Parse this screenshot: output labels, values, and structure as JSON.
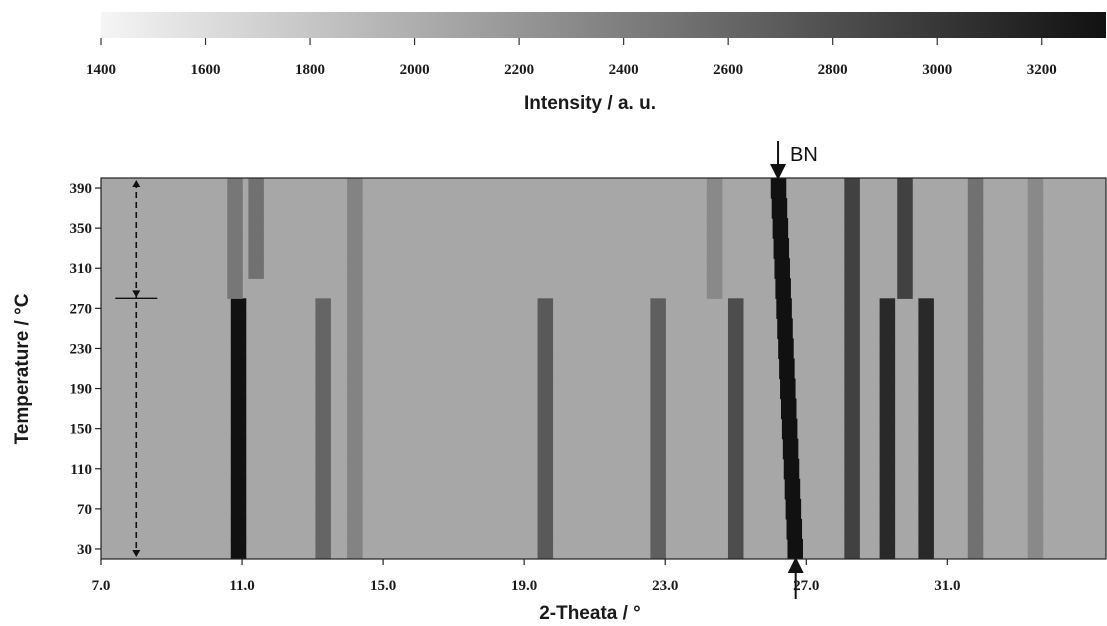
{
  "chart_data": {
    "type": "heatmap",
    "colorbar": {
      "min": 1400,
      "max": 3300,
      "ticks": [
        1400,
        1600,
        1800,
        2000,
        2200,
        2400,
        2600,
        2800,
        3000,
        3200
      ],
      "tick_labels": [
        "1400",
        "1600",
        "1800",
        "2000",
        "2200",
        "2400",
        "2600",
        "2800",
        "3000",
        "3200"
      ],
      "label": "Intensity / a. u.",
      "low_color": "#f5f5f5",
      "high_color": "#111111"
    },
    "x_axis": {
      "label": "2-Theata / °",
      "range": [
        7.0,
        35.5
      ],
      "ticks": [
        7.0,
        11.0,
        15.0,
        19.0,
        23.0,
        27.0,
        31.0
      ],
      "tick_labels": [
        "7.0",
        "11.0",
        "15.0",
        "19.0",
        "23.0",
        "27.0",
        "31.0"
      ]
    },
    "y_axis": {
      "label": "Temperature / °C",
      "range": [
        20,
        400
      ],
      "ticks": [
        30,
        70,
        110,
        150,
        190,
        230,
        270,
        310,
        350,
        390
      ],
      "tick_labels": [
        "30",
        "70",
        "110",
        "150",
        "190",
        "230",
        "270",
        "310",
        "350",
        "390"
      ]
    },
    "background_intensity": 2050,
    "temperature_rows": [
      30,
      50,
      70,
      90,
      110,
      130,
      150,
      170,
      190,
      210,
      230,
      250,
      270,
      290,
      310,
      330,
      350,
      370,
      390
    ],
    "phase_transition_temperature": 280,
    "peaks": [
      {
        "two_theta_low_T": 10.9,
        "two_theta_high_T": 10.9,
        "intensity": 3300,
        "t_min": 20,
        "t_max": 280
      },
      {
        "two_theta_low_T": 10.8,
        "two_theta_high_T": 10.8,
        "intensity": 2450,
        "t_min": 280,
        "t_max": 400
      },
      {
        "two_theta_low_T": 11.4,
        "two_theta_high_T": 11.4,
        "intensity": 2500,
        "t_min": 300,
        "t_max": 400
      },
      {
        "two_theta_low_T": 13.3,
        "two_theta_high_T": 13.3,
        "intensity": 2600,
        "t_min": 20,
        "t_max": 280
      },
      {
        "two_theta_low_T": 14.2,
        "two_theta_high_T": 14.2,
        "intensity": 2350,
        "t_min": 20,
        "t_max": 400
      },
      {
        "two_theta_low_T": 19.6,
        "two_theta_high_T": 19.6,
        "intensity": 2700,
        "t_min": 20,
        "t_max": 280
      },
      {
        "two_theta_low_T": 22.8,
        "two_theta_high_T": 22.8,
        "intensity": 2650,
        "t_min": 20,
        "t_max": 280
      },
      {
        "two_theta_low_T": 24.4,
        "two_theta_high_T": 24.4,
        "intensity": 2300,
        "t_min": 280,
        "t_max": 400
      },
      {
        "two_theta_low_T": 25.0,
        "two_theta_high_T": 25.0,
        "intensity": 2800,
        "t_min": 20,
        "t_max": 280
      },
      {
        "two_theta_low_T": 26.7,
        "two_theta_high_T": 26.2,
        "intensity": 3300,
        "t_min": 20,
        "t_max": 400
      },
      {
        "two_theta_low_T": 28.3,
        "two_theta_high_T": 28.3,
        "intensity": 2900,
        "t_min": 20,
        "t_max": 400
      },
      {
        "two_theta_low_T": 29.3,
        "two_theta_high_T": 29.3,
        "intensity": 3100,
        "t_min": 20,
        "t_max": 280
      },
      {
        "two_theta_low_T": 30.4,
        "two_theta_high_T": 30.4,
        "intensity": 3100,
        "t_min": 20,
        "t_max": 280
      },
      {
        "two_theta_low_T": 29.8,
        "two_theta_high_T": 29.8,
        "intensity": 2900,
        "t_min": 280,
        "t_max": 400
      },
      {
        "two_theta_low_T": 31.8,
        "two_theta_high_T": 31.8,
        "intensity": 2500,
        "t_min": 20,
        "t_max": 400
      },
      {
        "two_theta_low_T": 33.5,
        "two_theta_high_T": 33.5,
        "intensity": 2300,
        "t_min": 20,
        "t_max": 400
      }
    ],
    "annotations": [
      {
        "text": "BN",
        "two_theta": 26.2,
        "position": "top"
      }
    ],
    "bottom_marker_two_theta": 26.7,
    "dashed_marker_two_theta": 8.0
  }
}
